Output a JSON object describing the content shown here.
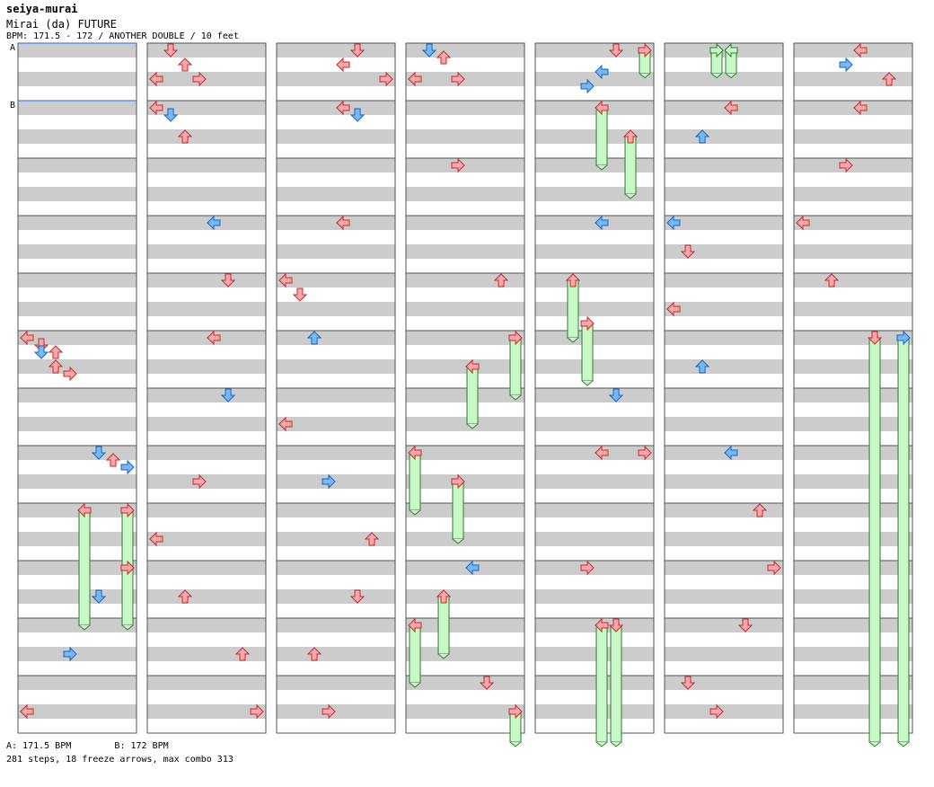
{
  "header": {
    "artist": "seiya-murai",
    "title": "Mirai (da) FUTURE",
    "meta": "BPM: 171.5 - 172 / ANOTHER DOUBLE / 10 feet"
  },
  "markers": [
    {
      "label": "A",
      "measure": 0
    },
    {
      "label": "B",
      "measure": 1
    }
  ],
  "footer": {
    "bpm_a": "A: 171.5 BPM",
    "bpm_b": "B: 172 BPM",
    "stats": "281 steps, 18 freeze arrows, max combo 313"
  },
  "colors": {
    "red_arrow": "#f7a8a8",
    "red_arrow_stroke": "#c62828",
    "blue_arrow": "#7ab8f5",
    "blue_arrow_stroke": "#1565c0",
    "freeze_fill": "#c8f7c8",
    "freeze_stroke": "#2e7d32",
    "stripe": "#cccccc",
    "measure_line": "#555555",
    "bpm_line": "#1e6fd9"
  },
  "chart_data": {
    "type": "step-chart",
    "columns": 7,
    "measures_per_column": 12,
    "lanes": [
      "P1-left",
      "P1-down",
      "P1-up",
      "P1-right",
      "P2-left",
      "P2-down",
      "P2-up",
      "P2-right"
    ],
    "notes": [
      {
        "col": 0,
        "beat": 20,
        "lane": 0,
        "color": "red"
      },
      {
        "col": 0,
        "beat": 20.5,
        "lane": 1,
        "color": "red"
      },
      {
        "col": 0,
        "beat": 21,
        "lane": 1,
        "color": "blue"
      },
      {
        "col": 0,
        "beat": 21,
        "lane": 2,
        "color": "red"
      },
      {
        "col": 0,
        "beat": 22,
        "lane": 2,
        "color": "red"
      },
      {
        "col": 0,
        "beat": 22.5,
        "lane": 3,
        "color": "red"
      },
      {
        "col": 0,
        "beat": 28,
        "lane": 5,
        "color": "blue"
      },
      {
        "col": 0,
        "beat": 28.5,
        "lane": 6,
        "color": "red"
      },
      {
        "col": 0,
        "beat": 29,
        "lane": 7,
        "color": "blue"
      },
      {
        "col": 0,
        "beat": 32,
        "lane": 4,
        "color": "red",
        "freeze": 2
      },
      {
        "col": 0,
        "beat": 32,
        "lane": 7,
        "color": "red",
        "freeze": 2
      },
      {
        "col": 0,
        "beat": 36,
        "lane": 7,
        "color": "red"
      },
      {
        "col": 0,
        "beat": 38,
        "lane": 5,
        "color": "blue"
      },
      {
        "col": 0,
        "beat": 42,
        "lane": 3,
        "color": "blue"
      },
      {
        "col": 0,
        "beat": 46,
        "lane": 0,
        "color": "red"
      },
      {
        "col": 1,
        "beat": 0,
        "lane": 1,
        "color": "red"
      },
      {
        "col": 1,
        "beat": 1,
        "lane": 2,
        "color": "red"
      },
      {
        "col": 1,
        "beat": 2,
        "lane": 0,
        "color": "red"
      },
      {
        "col": 1,
        "beat": 2,
        "lane": 3,
        "color": "red"
      },
      {
        "col": 1,
        "beat": 4,
        "lane": 0,
        "color": "red"
      },
      {
        "col": 1,
        "beat": 4.5,
        "lane": 1,
        "color": "blue"
      },
      {
        "col": 1,
        "beat": 6,
        "lane": 2,
        "color": "red"
      },
      {
        "col": 1,
        "beat": 12,
        "lane": 4,
        "color": "blue"
      },
      {
        "col": 1,
        "beat": 16,
        "lane": 5,
        "color": "red"
      },
      {
        "col": 1,
        "beat": 20,
        "lane": 4,
        "color": "red"
      },
      {
        "col": 1,
        "beat": 24,
        "lane": 5,
        "color": "blue"
      },
      {
        "col": 1,
        "beat": 30,
        "lane": 3,
        "color": "red"
      },
      {
        "col": 1,
        "beat": 34,
        "lane": 0,
        "color": "red"
      },
      {
        "col": 1,
        "beat": 38,
        "lane": 2,
        "color": "red"
      },
      {
        "col": 1,
        "beat": 42,
        "lane": 6,
        "color": "red"
      },
      {
        "col": 1,
        "beat": 46,
        "lane": 7,
        "color": "red"
      },
      {
        "col": 2,
        "beat": 0,
        "lane": 5,
        "color": "red"
      },
      {
        "col": 2,
        "beat": 1,
        "lane": 4,
        "color": "red"
      },
      {
        "col": 2,
        "beat": 2,
        "lane": 7,
        "color": "red"
      },
      {
        "col": 2,
        "beat": 4,
        "lane": 4,
        "color": "red"
      },
      {
        "col": 2,
        "beat": 4.5,
        "lane": 5,
        "color": "blue"
      },
      {
        "col": 2,
        "beat": 12,
        "lane": 4,
        "color": "red"
      },
      {
        "col": 2,
        "beat": 16,
        "lane": 0,
        "color": "red"
      },
      {
        "col": 2,
        "beat": 17,
        "lane": 1,
        "color": "red"
      },
      {
        "col": 2,
        "beat": 20,
        "lane": 2,
        "color": "blue"
      },
      {
        "col": 2,
        "beat": 26,
        "lane": 0,
        "color": "red"
      },
      {
        "col": 2,
        "beat": 30,
        "lane": 3,
        "color": "blue"
      },
      {
        "col": 2,
        "beat": 34,
        "lane": 6,
        "color": "red"
      },
      {
        "col": 2,
        "beat": 38,
        "lane": 5,
        "color": "red"
      },
      {
        "col": 2,
        "beat": 42,
        "lane": 2,
        "color": "red"
      },
      {
        "col": 2,
        "beat": 46,
        "lane": 3,
        "color": "red"
      },
      {
        "col": 3,
        "beat": 0,
        "lane": 1,
        "color": "blue"
      },
      {
        "col": 3,
        "beat": 0.5,
        "lane": 2,
        "color": "red"
      },
      {
        "col": 3,
        "beat": 2,
        "lane": 0,
        "color": "red"
      },
      {
        "col": 3,
        "beat": 2,
        "lane": 3,
        "color": "red"
      },
      {
        "col": 3,
        "beat": 8,
        "lane": 3,
        "color": "red"
      },
      {
        "col": 3,
        "beat": 16,
        "lane": 6,
        "color": "red"
      },
      {
        "col": 3,
        "beat": 20,
        "lane": 7,
        "color": "red",
        "freeze": 1
      },
      {
        "col": 3,
        "beat": 22,
        "lane": 4,
        "color": "red",
        "freeze": 1
      },
      {
        "col": 3,
        "beat": 28,
        "lane": 0,
        "color": "red",
        "freeze": 1
      },
      {
        "col": 3,
        "beat": 30,
        "lane": 3,
        "color": "red",
        "freeze": 1
      },
      {
        "col": 3,
        "beat": 36,
        "lane": 4,
        "color": "blue"
      },
      {
        "col": 3,
        "beat": 38,
        "lane": 2,
        "color": "red",
        "freeze": 1
      },
      {
        "col": 3,
        "beat": 40,
        "lane": 0,
        "color": "red",
        "freeze": 1
      },
      {
        "col": 3,
        "beat": 44,
        "lane": 5,
        "color": "red"
      },
      {
        "col": 3,
        "beat": 46,
        "lane": 7,
        "color": "red",
        "freeze": 1
      },
      {
        "col": 4,
        "beat": 0,
        "lane": 5,
        "color": "red"
      },
      {
        "col": 4,
        "beat": 0,
        "lane": 7,
        "color": "red",
        "freeze": 0.4
      },
      {
        "col": 4,
        "beat": 1.5,
        "lane": 4,
        "color": "blue"
      },
      {
        "col": 4,
        "beat": 2.5,
        "lane": 3,
        "color": "blue"
      },
      {
        "col": 4,
        "beat": 4,
        "lane": 4,
        "color": "red",
        "freeze": 1
      },
      {
        "col": 4,
        "beat": 6,
        "lane": 6,
        "color": "red",
        "freeze": 1
      },
      {
        "col": 4,
        "beat": 12,
        "lane": 4,
        "color": "blue"
      },
      {
        "col": 4,
        "beat": 16,
        "lane": 2,
        "color": "red",
        "freeze": 1
      },
      {
        "col": 4,
        "beat": 19,
        "lane": 3,
        "color": "red",
        "freeze": 1
      },
      {
        "col": 4,
        "beat": 24,
        "lane": 5,
        "color": "blue"
      },
      {
        "col": 4,
        "beat": 28,
        "lane": 4,
        "color": "red"
      },
      {
        "col": 4,
        "beat": 28,
        "lane": 7,
        "color": "red"
      },
      {
        "col": 4,
        "beat": 36,
        "lane": 3,
        "color": "red"
      },
      {
        "col": 4,
        "beat": 40,
        "lane": 4,
        "color": "red",
        "freeze": 8
      },
      {
        "col": 4,
        "beat": 40,
        "lane": 5,
        "color": "red",
        "freeze": 8
      },
      {
        "col": 5,
        "beat": 0,
        "lane": 3,
        "color": "green",
        "freeze": 0.4
      },
      {
        "col": 5,
        "beat": 0,
        "lane": 4,
        "color": "green",
        "freeze": 0.4
      },
      {
        "col": 5,
        "beat": 4,
        "lane": 4,
        "color": "red"
      },
      {
        "col": 5,
        "beat": 6,
        "lane": 2,
        "color": "blue"
      },
      {
        "col": 5,
        "beat": 12,
        "lane": 0,
        "color": "blue"
      },
      {
        "col": 5,
        "beat": 14,
        "lane": 1,
        "color": "red"
      },
      {
        "col": 5,
        "beat": 18,
        "lane": 0,
        "color": "red"
      },
      {
        "col": 5,
        "beat": 22,
        "lane": 2,
        "color": "blue"
      },
      {
        "col": 5,
        "beat": 28,
        "lane": 4,
        "color": "blue"
      },
      {
        "col": 5,
        "beat": 32,
        "lane": 6,
        "color": "red"
      },
      {
        "col": 5,
        "beat": 36,
        "lane": 7,
        "color": "red"
      },
      {
        "col": 5,
        "beat": 40,
        "lane": 5,
        "color": "red"
      },
      {
        "col": 5,
        "beat": 44,
        "lane": 1,
        "color": "red"
      },
      {
        "col": 5,
        "beat": 46,
        "lane": 3,
        "color": "red"
      },
      {
        "col": 6,
        "beat": 0,
        "lane": 4,
        "color": "red"
      },
      {
        "col": 6,
        "beat": 1,
        "lane": 3,
        "color": "blue"
      },
      {
        "col": 6,
        "beat": 2,
        "lane": 6,
        "color": "red"
      },
      {
        "col": 6,
        "beat": 4,
        "lane": 4,
        "color": "red"
      },
      {
        "col": 6,
        "beat": 8,
        "lane": 3,
        "color": "red"
      },
      {
        "col": 6,
        "beat": 12,
        "lane": 0,
        "color": "red"
      },
      {
        "col": 6,
        "beat": 16,
        "lane": 2,
        "color": "red"
      },
      {
        "col": 6,
        "beat": 20,
        "lane": 5,
        "color": "red",
        "freeze": 17
      },
      {
        "col": 6,
        "beat": 20,
        "lane": 7,
        "color": "blue",
        "freeze": 17
      }
    ]
  }
}
